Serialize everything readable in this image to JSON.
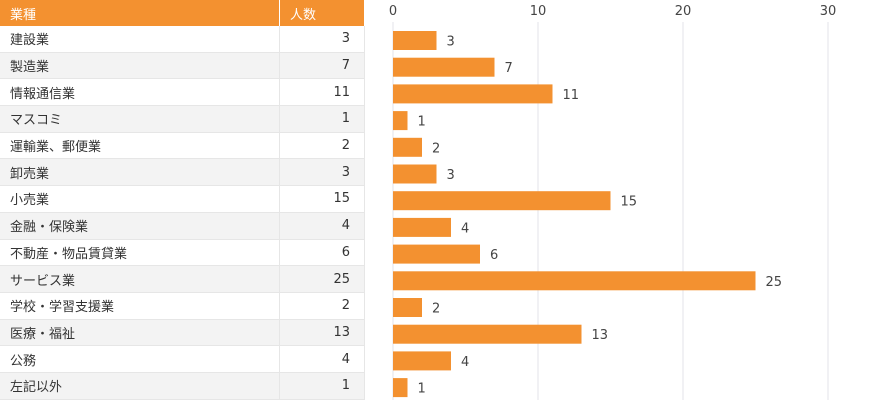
{
  "table": {
    "headers": [
      "業種",
      "人数"
    ]
  },
  "chart_data": {
    "type": "bar",
    "orientation": "horizontal",
    "categories": [
      "建設業",
      "製造業",
      "情報通信業",
      "マスコミ",
      "運輸業、郵便業",
      "卸売業",
      "小売業",
      "金融・保険業",
      "不動産・物品賃貸業",
      "サービス業",
      "学校・学習支援業",
      "医療・福祉",
      "公務",
      "左記以外"
    ],
    "values": [
      3,
      7,
      11,
      1,
      2,
      3,
      15,
      4,
      6,
      25,
      2,
      13,
      4,
      1
    ],
    "xlim": [
      0,
      30
    ],
    "ticks": [
      0,
      10,
      20,
      30
    ],
    "grid": true,
    "color": "#f39130"
  }
}
